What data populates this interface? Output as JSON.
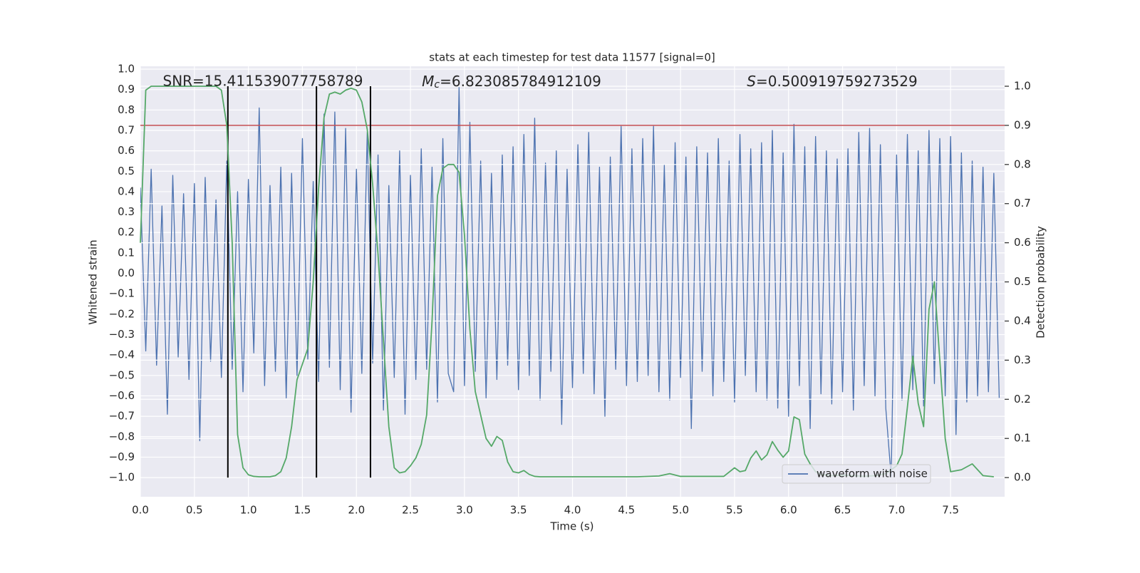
{
  "chart_data": {
    "type": "line",
    "title": "stats at each timestep for test data 11577 [signal=0]",
    "xlabel": "Time (s)",
    "ylabel": "Whitened strain",
    "y2label": "Detection probability",
    "annotations": [
      {
        "text": "SNR=15.411539077758789"
      },
      {
        "symbol": "M",
        "sub": "c",
        "text": "=6.823085784912109"
      },
      {
        "symbol": "S",
        "text": "=0.500919759273529"
      }
    ],
    "xlim": [
      0,
      8.0
    ],
    "ylim": [
      -1.094,
      1.014
    ],
    "y2lim": [
      -0.049,
      1.051
    ],
    "grid": true,
    "legend": "lower right",
    "xticks": [
      {
        "value": 0,
        "label": "0.0"
      },
      {
        "value": 0.5,
        "label": "0.5"
      },
      {
        "value": 1,
        "label": "1.0"
      },
      {
        "value": 1.5,
        "label": "1.5"
      },
      {
        "value": 2,
        "label": "2.0"
      },
      {
        "value": 2.5,
        "label": "2.5"
      },
      {
        "value": 3,
        "label": "3.0"
      },
      {
        "value": 3.5,
        "label": "3.5"
      },
      {
        "value": 4,
        "label": "4.0"
      },
      {
        "value": 4.5,
        "label": "4.5"
      },
      {
        "value": 5,
        "label": "5.0"
      },
      {
        "value": 5.5,
        "label": "5.5"
      },
      {
        "value": 6,
        "label": "6.0"
      },
      {
        "value": 6.5,
        "label": "6.5"
      },
      {
        "value": 7,
        "label": "7.0"
      },
      {
        "value": 7.5,
        "label": "7.5"
      }
    ],
    "yticks": [
      {
        "value": -1,
        "label": "−1.0"
      },
      {
        "value": -0.9,
        "label": "−0.9"
      },
      {
        "value": -0.8,
        "label": "−0.8"
      },
      {
        "value": -0.7,
        "label": "−0.7"
      },
      {
        "value": -0.6,
        "label": "−0.6"
      },
      {
        "value": -0.5,
        "label": "−0.5"
      },
      {
        "value": -0.4,
        "label": "−0.4"
      },
      {
        "value": -0.3,
        "label": "−0.3"
      },
      {
        "value": -0.2,
        "label": "−0.2"
      },
      {
        "value": -0.1,
        "label": "−0.1"
      },
      {
        "value": 0,
        "label": "0.0"
      },
      {
        "value": 0.1,
        "label": "0.1"
      },
      {
        "value": 0.2,
        "label": "0.2"
      },
      {
        "value": 0.3,
        "label": "0.3"
      },
      {
        "value": 0.4,
        "label": "0.4"
      },
      {
        "value": 0.5,
        "label": "0.5"
      },
      {
        "value": 0.6,
        "label": "0.6"
      },
      {
        "value": 0.7,
        "label": "0.7"
      },
      {
        "value": 0.8,
        "label": "0.8"
      },
      {
        "value": 0.9,
        "label": "0.9"
      },
      {
        "value": 1,
        "label": "1.0"
      }
    ],
    "y2ticks": [
      {
        "value": 0,
        "label": "0.0"
      },
      {
        "value": 0.1,
        "label": "0.1"
      },
      {
        "value": 0.2,
        "label": "0.2"
      },
      {
        "value": 0.3,
        "label": "0.3"
      },
      {
        "value": 0.4,
        "label": "0.4"
      },
      {
        "value": 0.5,
        "label": "0.5"
      },
      {
        "value": 0.6,
        "label": "0.6"
      },
      {
        "value": 0.7,
        "label": "0.7"
      },
      {
        "value": 0.8,
        "label": "0.8"
      },
      {
        "value": 0.9,
        "label": "0.9"
      },
      {
        "value": 1,
        "label": "1.0"
      }
    ],
    "threshold": {
      "value": 0.9,
      "axis": "y2",
      "color": "#c44e52"
    },
    "vlines": {
      "x": [
        0.81,
        1.63,
        2.13
      ],
      "ymin": 0,
      "ymax": 1,
      "axis": "y2",
      "color": "#000000"
    },
    "series": [
      {
        "name": "waveform with noise",
        "color": "#4c72b0",
        "x": [
          0,
          0.05,
          0.1,
          0.15,
          0.2,
          0.25,
          0.3,
          0.35,
          0.4,
          0.45,
          0.5,
          0.55,
          0.6,
          0.65,
          0.7,
          0.75,
          0.8,
          0.85,
          0.9,
          0.95,
          1,
          1.05,
          1.1,
          1.15,
          1.2,
          1.25,
          1.3,
          1.35,
          1.4,
          1.45,
          1.5,
          1.55,
          1.6,
          1.65,
          1.7,
          1.75,
          1.8,
          1.85,
          1.9,
          1.95,
          2,
          2.05,
          2.1,
          2.15,
          2.2,
          2.25,
          2.3,
          2.35,
          2.4,
          2.45,
          2.5,
          2.55,
          2.6,
          2.65,
          2.7,
          2.75,
          2.8,
          2.85,
          2.9,
          2.95,
          3,
          3.05,
          3.1,
          3.15,
          3.2,
          3.25,
          3.3,
          3.35,
          3.4,
          3.45,
          3.5,
          3.55,
          3.6,
          3.65,
          3.7,
          3.75,
          3.8,
          3.85,
          3.9,
          3.95,
          4,
          4.05,
          4.1,
          4.15,
          4.2,
          4.25,
          4.3,
          4.35,
          4.4,
          4.45,
          4.5,
          4.55,
          4.6,
          4.65,
          4.7,
          4.75,
          4.8,
          4.85,
          4.9,
          4.95,
          5,
          5.05,
          5.1,
          5.15,
          5.2,
          5.25,
          5.3,
          5.35,
          5.4,
          5.45,
          5.5,
          5.55,
          5.6,
          5.65,
          5.7,
          5.75,
          5.8,
          5.85,
          5.9,
          5.95,
          6,
          6.05,
          6.1,
          6.15,
          6.2,
          6.25,
          6.3,
          6.35,
          6.4,
          6.45,
          6.5,
          6.55,
          6.6,
          6.65,
          6.7,
          6.75,
          6.8,
          6.85,
          6.9,
          6.95,
          7,
          7.05,
          7.1,
          7.15,
          7.2,
          7.25,
          7.3,
          7.35,
          7.4,
          7.45,
          7.5,
          7.55,
          7.6,
          7.65,
          7.7,
          7.75,
          7.8,
          7.85,
          7.9,
          7.95
        ],
        "values": [
          0.42,
          -0.38,
          0.51,
          -0.45,
          0.33,
          -0.69,
          0.48,
          -0.41,
          0.39,
          -0.52,
          0.44,
          -0.82,
          0.47,
          -0.43,
          0.36,
          -0.51,
          0.55,
          -0.47,
          0.4,
          -0.58,
          0.46,
          -0.39,
          0.81,
          -0.55,
          0.43,
          -0.48,
          0.52,
          -0.61,
          0.49,
          -0.5,
          0.66,
          -0.42,
          0.45,
          -0.53,
          0.78,
          -0.46,
          0.79,
          -0.57,
          0.71,
          -0.68,
          0.51,
          -0.49,
          0.69,
          -0.44,
          0.58,
          -0.67,
          0.43,
          -0.51,
          0.6,
          -0.69,
          0.48,
          -0.52,
          0.61,
          -0.47,
          0.52,
          -0.63,
          0.66,
          -0.49,
          -0.58,
          0.91,
          -0.55,
          0.74,
          -0.48,
          0.55,
          -0.61,
          0.49,
          -0.52,
          0.58,
          -0.45,
          0.62,
          -0.57,
          0.68,
          -0.5,
          0.76,
          -0.62,
          0.54,
          -0.48,
          0.6,
          -0.74,
          0.51,
          -0.56,
          0.63,
          -0.49,
          0.69,
          -0.59,
          0.52,
          -0.7,
          0.57,
          -0.47,
          0.72,
          -0.55,
          0.61,
          -0.53,
          0.66,
          -0.5,
          0.72,
          -0.58,
          0.53,
          -0.62,
          0.64,
          -0.51,
          0.57,
          -0.76,
          0.62,
          -0.48,
          0.59,
          -0.6,
          0.66,
          -0.53,
          0.55,
          -0.63,
          0.68,
          -0.5,
          0.61,
          -0.58,
          0.64,
          -0.62,
          0.7,
          -0.66,
          0.59,
          -0.7,
          0.73,
          -0.55,
          0.62,
          -0.76,
          0.67,
          -0.59,
          0.6,
          -0.64,
          0.56,
          -0.58,
          0.61,
          -0.67,
          0.69,
          -0.55,
          0.71,
          -0.6,
          0.63,
          -0.66,
          -1.0,
          0.58,
          -0.62,
          0.68,
          -0.57,
          0.6,
          -0.65,
          0.7,
          -0.54,
          0.66,
          -0.6,
          0.67,
          -0.79,
          0.59,
          -0.63,
          0.55,
          -0.6,
          0.52,
          -0.58,
          0.49,
          -0.61
        ]
      },
      {
        "name": "detection probability",
        "legend": false,
        "color": "#55a868",
        "axis": "y2",
        "x": [
          0,
          0.05,
          0.1,
          0.2,
          0.4,
          0.6,
          0.7,
          0.75,
          0.8,
          0.85,
          0.9,
          0.95,
          1.0,
          1.05,
          1.1,
          1.2,
          1.25,
          1.3,
          1.35,
          1.4,
          1.45,
          1.5,
          1.55,
          1.6,
          1.65,
          1.7,
          1.75,
          1.8,
          1.85,
          1.9,
          1.95,
          2.0,
          2.05,
          2.1,
          2.15,
          2.2,
          2.25,
          2.3,
          2.35,
          2.4,
          2.45,
          2.5,
          2.55,
          2.6,
          2.65,
          2.7,
          2.75,
          2.8,
          2.85,
          2.9,
          2.95,
          3.0,
          3.05,
          3.1,
          3.15,
          3.2,
          3.25,
          3.3,
          3.35,
          3.4,
          3.45,
          3.5,
          3.55,
          3.6,
          3.65,
          3.7,
          3.8,
          4.0,
          4.2,
          4.4,
          4.6,
          4.8,
          4.9,
          5.0,
          5.2,
          5.4,
          5.5,
          5.55,
          5.6,
          5.65,
          5.7,
          5.75,
          5.8,
          5.85,
          5.9,
          5.95,
          6.0,
          6.05,
          6.1,
          6.15,
          6.2,
          6.25,
          6.3,
          6.4,
          6.5,
          6.6,
          6.7,
          6.8,
          6.9,
          7.0,
          7.05,
          7.1,
          7.15,
          7.2,
          7.25,
          7.3,
          7.35,
          7.4,
          7.45,
          7.5,
          7.6,
          7.7,
          7.8,
          7.9
        ],
        "values": [
          0.6,
          0.99,
          1.0,
          1.0,
          1.0,
          1.0,
          1.0,
          0.99,
          0.9,
          0.6,
          0.11,
          0.025,
          0.007,
          0.003,
          0.002,
          0.002,
          0.005,
          0.015,
          0.05,
          0.13,
          0.25,
          0.29,
          0.33,
          0.5,
          0.74,
          0.92,
          0.98,
          0.985,
          0.98,
          0.99,
          0.995,
          0.99,
          0.96,
          0.89,
          0.75,
          0.57,
          0.35,
          0.13,
          0.025,
          0.012,
          0.015,
          0.03,
          0.05,
          0.085,
          0.16,
          0.4,
          0.72,
          0.79,
          0.8,
          0.8,
          0.78,
          0.62,
          0.38,
          0.22,
          0.16,
          0.1,
          0.08,
          0.105,
          0.095,
          0.04,
          0.015,
          0.012,
          0.018,
          0.008,
          0.003,
          0.002,
          0.002,
          0.002,
          0.002,
          0.002,
          0.002,
          0.004,
          0.01,
          0.003,
          0.003,
          0.003,
          0.025,
          0.015,
          0.018,
          0.05,
          0.068,
          0.045,
          0.058,
          0.092,
          0.07,
          0.052,
          0.068,
          0.155,
          0.148,
          0.06,
          0.035,
          0.015,
          0.008,
          0.005,
          0.006,
          0.005,
          0.003,
          0.005,
          0.01,
          0.03,
          0.06,
          0.18,
          0.31,
          0.19,
          0.13,
          0.43,
          0.5,
          0.3,
          0.1,
          0.015,
          0.02,
          0.035,
          0.005,
          0.002
        ]
      }
    ]
  }
}
